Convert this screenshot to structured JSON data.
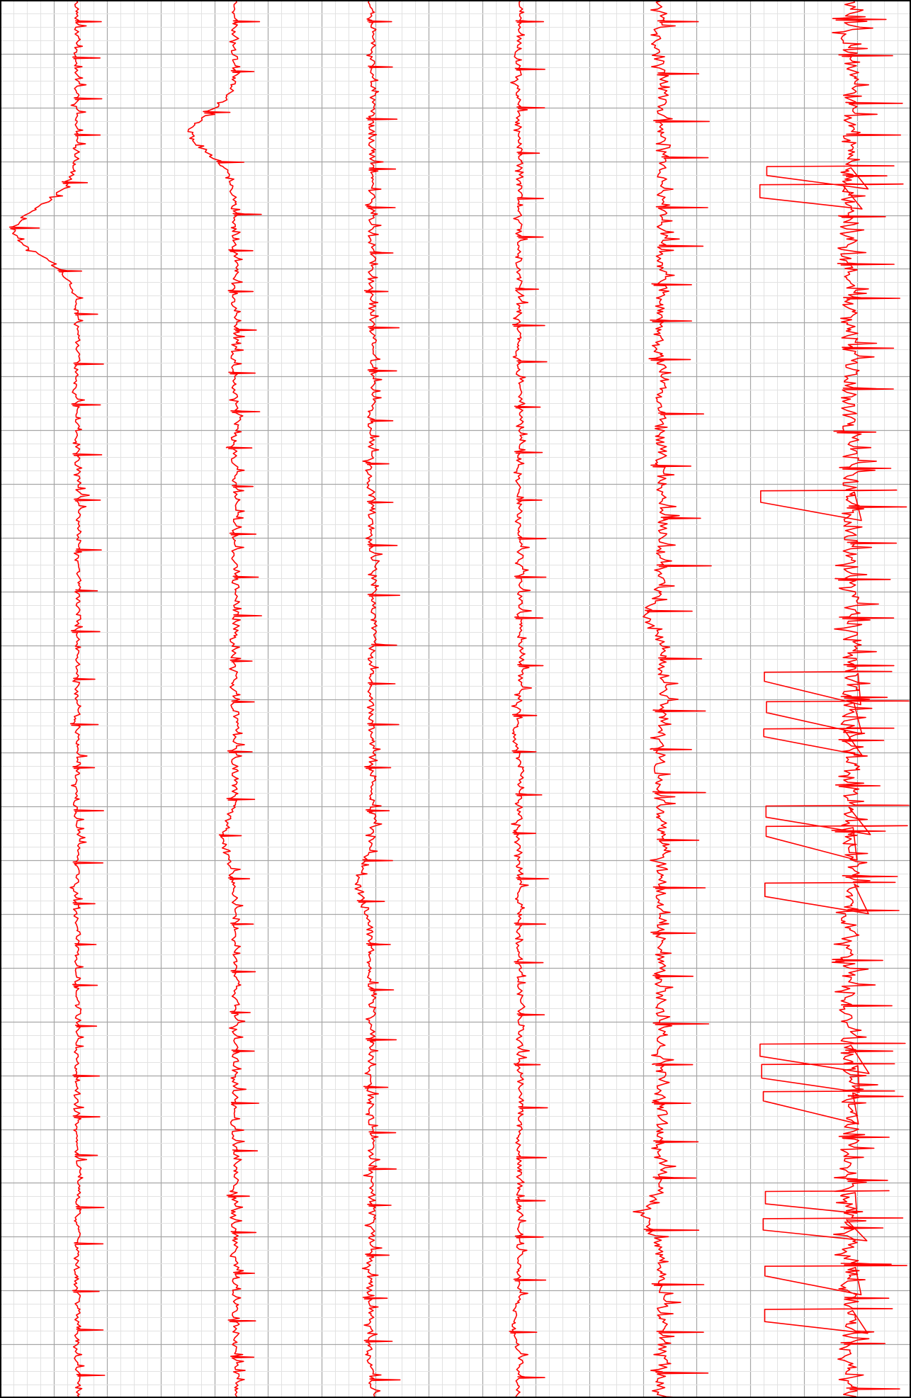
{
  "chart_data": {
    "type": "line",
    "title": "",
    "xlabel": "",
    "ylabel": "",
    "grid": true,
    "legend": "none",
    "tick_labels": [],
    "colors": {
      "trace": "#ff0000",
      "minor_grid": "#e2e2e2",
      "major_grid": "#a6a6a6",
      "border": "#000000",
      "background": "#ffffff"
    },
    "series": [
      {
        "style": "spiky",
        "level": 0.51,
        "spike": 0.14,
        "jitter": 0.035,
        "spacing": 62,
        "period": 14,
        "seed": 11,
        "events": [
          {
            "at": 0.165,
            "offset": -0.42,
            "span": 0.035
          }
        ]
      },
      {
        "style": "spiky",
        "level": 0.55,
        "spike": 0.13,
        "jitter": 0.045,
        "spacing": 62,
        "period": 13,
        "seed": 23,
        "events": [
          {
            "at": 0.095,
            "offset": -0.3,
            "span": 0.03
          },
          {
            "at": 0.6,
            "offset": -0.08,
            "span": 0.03
          }
        ]
      },
      {
        "style": "spiky",
        "level": 0.45,
        "spike": 0.15,
        "jitter": 0.045,
        "spacing": 63,
        "period": 15,
        "seed": 37,
        "events": [
          {
            "at": 0.63,
            "offset": -0.1,
            "span": 0.03
          }
        ]
      },
      {
        "style": "spiky",
        "level": 0.42,
        "spike": 0.15,
        "jitter": 0.04,
        "spacing": 62,
        "period": 14,
        "seed": 51,
        "events": [
          {
            "at": 0.53,
            "offset": -0.05,
            "span": 0.02
          },
          {
            "at": 0.95,
            "offset": -0.04,
            "span": 0.02
          }
        ]
      },
      {
        "style": "spiky",
        "level": 0.36,
        "spike": 0.26,
        "jitter": 0.07,
        "spacing": 64,
        "period": 12,
        "seed": 67,
        "events": [
          {
            "at": 0.44,
            "offset": -0.12,
            "span": 0.02
          },
          {
            "at": 0.87,
            "offset": -0.12,
            "span": 0.02
          }
        ]
      },
      {
        "style": "wild",
        "level": 0.6,
        "spike": 0.25,
        "jitter": 0.11,
        "spacing": 58,
        "period": 10,
        "seed": 83,
        "sweeps": [
          0.117,
          0.13,
          0.35,
          0.48,
          0.5,
          0.52,
          0.575,
          0.59,
          0.63,
          0.745,
          0.76,
          0.78,
          0.85,
          0.87,
          0.905,
          0.935
        ]
      }
    ]
  }
}
